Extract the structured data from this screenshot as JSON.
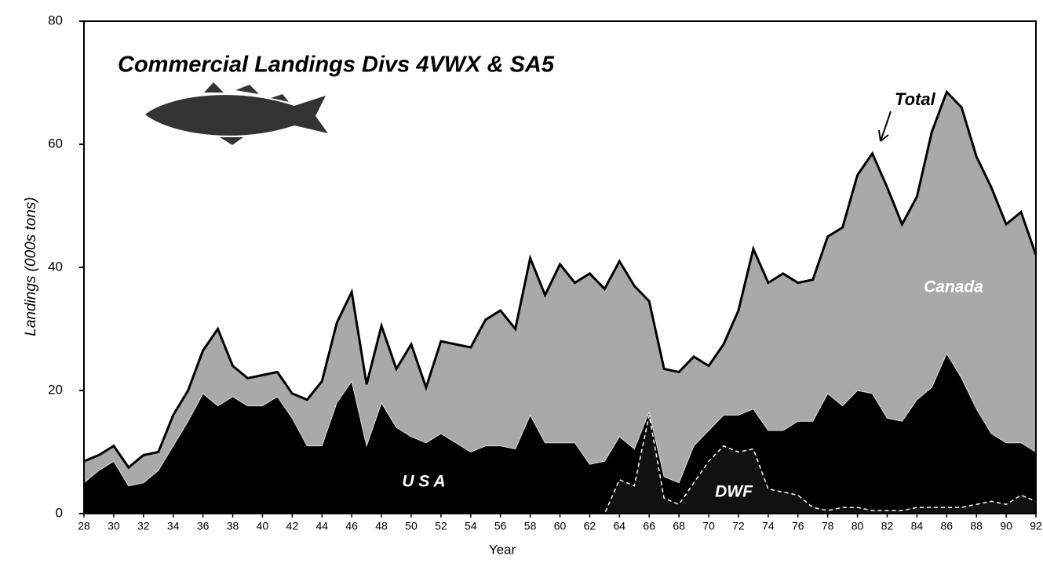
{
  "chart_data": {
    "type": "stacked-area",
    "title": "Commercial Landings Divs 4VWX & SA5",
    "x_label": "Year",
    "y_label": "Landings (000s tons)",
    "annotation": "Total",
    "x": [
      28,
      29,
      30,
      31,
      32,
      33,
      34,
      35,
      36,
      37,
      38,
      39,
      40,
      41,
      42,
      43,
      44,
      45,
      46,
      47,
      48,
      49,
      50,
      51,
      52,
      53,
      54,
      55,
      56,
      57,
      58,
      59,
      60,
      61,
      62,
      63,
      64,
      65,
      66,
      67,
      68,
      69,
      70,
      71,
      72,
      73,
      74,
      75,
      76,
      77,
      78,
      79,
      80,
      81,
      82,
      83,
      84,
      85,
      86,
      87,
      88,
      89,
      90,
      91,
      92
    ],
    "xlim": [
      28,
      92
    ],
    "xticks": [
      28,
      30,
      32,
      34,
      36,
      38,
      40,
      42,
      44,
      46,
      48,
      50,
      52,
      54,
      56,
      58,
      60,
      62,
      64,
      66,
      68,
      70,
      72,
      74,
      76,
      78,
      80,
      82,
      84,
      86,
      88,
      90,
      92
    ],
    "ylim": [
      0,
      80
    ],
    "yticks": [
      0,
      20,
      40,
      60,
      80
    ],
    "series": [
      {
        "name": "DWF",
        "color": "#111111",
        "values": [
          0,
          0,
          0,
          0,
          0,
          0,
          0,
          0,
          0,
          0,
          0,
          0,
          0,
          0,
          0,
          0,
          0,
          0,
          0,
          0,
          0,
          0,
          0,
          0,
          0,
          0,
          0,
          0,
          0,
          0,
          0,
          0,
          0,
          0,
          0,
          0,
          5.5,
          4.5,
          16,
          2.5,
          1.5,
          5,
          8.5,
          11,
          10,
          10.5,
          4,
          3.5,
          3,
          1,
          0.5,
          1,
          1,
          0.5,
          0.5,
          0.5,
          1,
          1,
          1,
          1,
          1.5,
          2,
          1.5,
          3,
          2
        ]
      },
      {
        "name": "U S A",
        "color": "#000000",
        "values": [
          5,
          7,
          8.5,
          4.5,
          5,
          7,
          11,
          15,
          19.5,
          17.5,
          19,
          17.5,
          17.5,
          19,
          15.5,
          11,
          11,
          18,
          21.5,
          11,
          18,
          14,
          12.5,
          11.5,
          13,
          11.5,
          10,
          11,
          11,
          10.5,
          16,
          11.5,
          11.5,
          11.5,
          8,
          8.5,
          7,
          6,
          0.5,
          3.5,
          3.5,
          6,
          5,
          5,
          6,
          6.5,
          9.5,
          10,
          12,
          14,
          19,
          16.5,
          19,
          19,
          15,
          14.5,
          17.5,
          19.5,
          25,
          21,
          15.5,
          11,
          10,
          8.5,
          8
        ]
      },
      {
        "name": "Canada",
        "color": "#a9a9a9",
        "values": [
          3.5,
          2.5,
          2.5,
          3,
          4.5,
          3,
          5,
          5,
          7,
          12.5,
          5,
          4.5,
          5,
          4,
          4,
          7.5,
          10.5,
          13,
          14.5,
          10,
          12.5,
          9.5,
          15,
          9,
          15,
          16,
          17,
          20.5,
          22,
          19.5,
          25.5,
          24,
          29,
          26,
          31,
          28,
          28.5,
          26.5,
          18,
          17.5,
          18,
          14.5,
          10.5,
          11.5,
          17,
          26,
          24,
          25.5,
          22.5,
          23,
          25.5,
          29,
          35,
          39,
          37.5,
          32,
          33,
          41.5,
          42.5,
          44,
          41,
          40,
          35.5,
          37.5,
          32
        ]
      }
    ]
  }
}
